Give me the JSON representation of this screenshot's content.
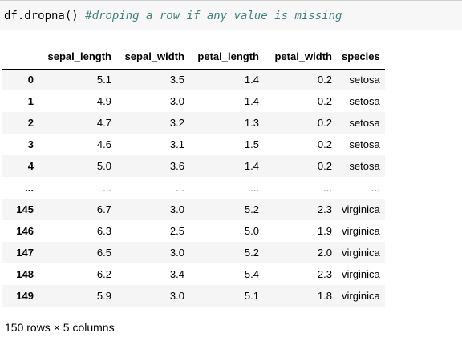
{
  "code_cell": {
    "code": "df.dropna()",
    "comment": "#droping a row if any value is missing"
  },
  "dataframe": {
    "columns": [
      "",
      "sepal_length",
      "sepal_width",
      "petal_length",
      "petal_width",
      "species"
    ],
    "rows": [
      [
        "0",
        "5.1",
        "3.5",
        "1.4",
        "0.2",
        "setosa"
      ],
      [
        "1",
        "4.9",
        "3.0",
        "1.4",
        "0.2",
        "setosa"
      ],
      [
        "2",
        "4.7",
        "3.2",
        "1.3",
        "0.2",
        "setosa"
      ],
      [
        "3",
        "4.6",
        "3.1",
        "1.5",
        "0.2",
        "setosa"
      ],
      [
        "4",
        "5.0",
        "3.6",
        "1.4",
        "0.2",
        "setosa"
      ],
      [
        "...",
        "...",
        "...",
        "...",
        "...",
        "..."
      ],
      [
        "145",
        "6.7",
        "3.0",
        "5.2",
        "2.3",
        "virginica"
      ],
      [
        "146",
        "6.3",
        "2.5",
        "5.0",
        "1.9",
        "virginica"
      ],
      [
        "147",
        "6.5",
        "3.0",
        "5.2",
        "2.0",
        "virginica"
      ],
      [
        "148",
        "6.2",
        "3.4",
        "5.4",
        "2.3",
        "virginica"
      ],
      [
        "149",
        "5.9",
        "3.0",
        "5.1",
        "1.8",
        "virginica"
      ]
    ],
    "summary": "150 rows × 5 columns"
  }
}
